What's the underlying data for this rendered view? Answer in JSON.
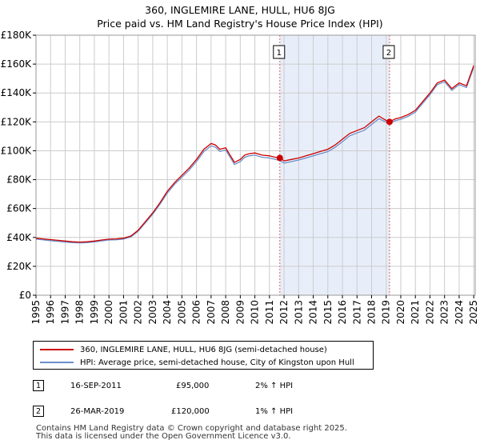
{
  "header": {
    "title": "360, INGLEMIRE LANE, HULL, HU6 8JG",
    "subtitle": "Price paid vs. HM Land Registry's House Price Index (HPI)"
  },
  "colors": {
    "property": "#cc0000",
    "hpi": "#6a8fc9",
    "shade": "#e8eef9",
    "marker_line": "#e06060",
    "grid": "#cccccc"
  },
  "chart_data": {
    "type": "line",
    "title": "360, INGLEMIRE LANE, HULL, HU6 8JG",
    "subtitle": "Price paid vs. HM Land Registry's House Price Index (HPI)",
    "xlabel": "",
    "ylabel": "",
    "xlim": [
      1995,
      2025.1
    ],
    "ylim": [
      0,
      180000
    ],
    "x_ticks": [
      "1995",
      "1996",
      "1997",
      "1998",
      "1999",
      "2000",
      "2001",
      "2002",
      "2003",
      "2004",
      "2005",
      "2006",
      "2007",
      "2008",
      "2009",
      "2010",
      "2011",
      "2012",
      "2013",
      "2014",
      "2015",
      "2016",
      "2017",
      "2018",
      "2019",
      "2020",
      "2021",
      "2022",
      "2023",
      "2024",
      "2025"
    ],
    "y_ticks": [
      "£0",
      "£20K",
      "£40K",
      "£60K",
      "£80K",
      "£100K",
      "£120K",
      "£140K",
      "£160K",
      "£180K"
    ],
    "grid": true,
    "series": [
      {
        "name": "360, INGLEMIRE LANE, HULL, HU6 8JG (semi-detached house)",
        "x": [
          1995,
          1995.5,
          1996,
          1996.5,
          1997,
          1997.5,
          1998,
          1998.5,
          1999,
          1999.5,
          2000,
          2000.5,
          2001,
          2001.5,
          2002,
          2002.5,
          2003,
          2003.5,
          2004,
          2004.5,
          2005,
          2005.5,
          2006,
          2006.5,
          2007,
          2007.3,
          2007.6,
          2008,
          2008.3,
          2008.6,
          2009,
          2009.3,
          2009.6,
          2010,
          2010.5,
          2011,
          2011.4,
          2011.71,
          2012,
          2012.5,
          2013,
          2013.5,
          2014,
          2014.5,
          2015,
          2015.5,
          2016,
          2016.5,
          2017,
          2017.5,
          2018,
          2018.5,
          2019,
          2019.23,
          2019.6,
          2020,
          2020.5,
          2021,
          2021.5,
          2022,
          2022.5,
          2023,
          2023.5,
          2024,
          2024.5,
          2025
        ],
        "values": [
          39500,
          39000,
          38500,
          38000,
          37500,
          37000,
          36800,
          37000,
          37500,
          38200,
          38800,
          39000,
          39500,
          41000,
          45000,
          51000,
          57000,
          64000,
          72000,
          78000,
          83000,
          88000,
          94000,
          101000,
          105000,
          104000,
          101000,
          102000,
          97000,
          92000,
          94000,
          97000,
          98000,
          98500,
          97000,
          96500,
          95500,
          95000,
          93000,
          94000,
          95000,
          96500,
          98000,
          99500,
          101000,
          104000,
          108000,
          112000,
          114000,
          116000,
          120000,
          124000,
          121000,
          120000,
          122000,
          123000,
          125000,
          128000,
          134000,
          140000,
          147000,
          149000,
          143000,
          147000,
          145000,
          159000
        ]
      },
      {
        "name": "HPI: Average price, semi-detached house, City of Kingston upon Hull",
        "x": [
          1995,
          1995.5,
          1996,
          1996.5,
          1997,
          1997.5,
          1998,
          1998.5,
          1999,
          1999.5,
          2000,
          2000.5,
          2001,
          2001.5,
          2002,
          2002.5,
          2003,
          2003.5,
          2004,
          2004.5,
          2005,
          2005.5,
          2006,
          2006.5,
          2007,
          2007.3,
          2007.6,
          2008,
          2008.3,
          2008.6,
          2009,
          2009.3,
          2009.6,
          2010,
          2010.5,
          2011,
          2011.4,
          2011.71,
          2012,
          2012.5,
          2013,
          2013.5,
          2014,
          2014.5,
          2015,
          2015.5,
          2016,
          2016.5,
          2017,
          2017.5,
          2018,
          2018.5,
          2019,
          2019.23,
          2019.6,
          2020,
          2020.5,
          2021,
          2021.5,
          2022,
          2022.5,
          2023,
          2023.5,
          2024,
          2024.5,
          2025
        ],
        "values": [
          38800,
          38300,
          37800,
          37300,
          36800,
          36400,
          36200,
          36400,
          36900,
          37600,
          38200,
          38400,
          38900,
          40400,
          44300,
          50200,
          56100,
          63000,
          70800,
          76800,
          81700,
          86600,
          92500,
          99400,
          103400,
          102500,
          99500,
          100500,
          95500,
          90500,
          92500,
          95500,
          96500,
          97000,
          95500,
          95000,
          94000,
          93200,
          91500,
          92500,
          93600,
          95000,
          96500,
          98000,
          99400,
          102400,
          106300,
          110300,
          112300,
          114200,
          118200,
          122200,
          119800,
          118800,
          120800,
          121800,
          123800,
          126800,
          132800,
          138800,
          145800,
          147800,
          141800,
          145800,
          143800,
          157800
        ]
      }
    ],
    "sales": [
      {
        "label": "1",
        "date": "16-SEP-2011",
        "x": 2011.71,
        "price_value": 95000,
        "price": "£95,000",
        "hpi": "2% ↑ HPI"
      },
      {
        "label": "2",
        "date": "26-MAR-2019",
        "x": 2019.23,
        "price_value": 120000,
        "price": "£120,000",
        "hpi": "1% ↑ HPI"
      }
    ],
    "shaded_range": [
      2011.71,
      2019.23
    ]
  },
  "legend": {
    "property_label": "360, INGLEMIRE LANE, HULL, HU6 8JG (semi-detached house)",
    "hpi_label": "HPI: Average price, semi-detached house, City of Kingston upon Hull"
  },
  "footer": {
    "line1": "Contains HM Land Registry data © Crown copyright and database right 2025.",
    "line2": "This data is licensed under the Open Government Licence v3.0."
  }
}
